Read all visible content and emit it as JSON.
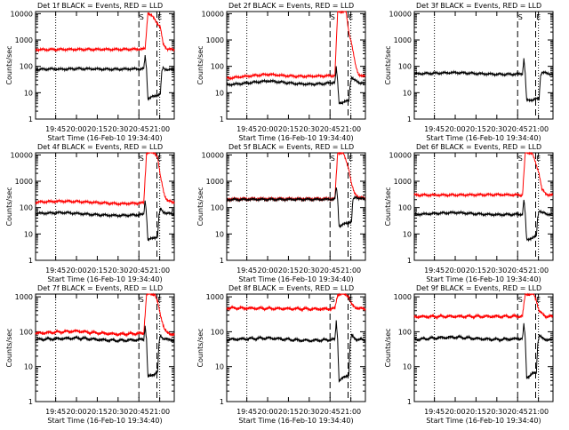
{
  "chart_data": [
    {
      "type": "line",
      "title": "Det 1f BLACK = Events, RED = LLD",
      "xlabel": "Start Time (16-Feb-10 19:34:40)",
      "ylabel": "Counts/sec",
      "y_scale": "log",
      "ylim": [
        1,
        12000
      ],
      "xlim": [
        0,
        100
      ],
      "grid": false,
      "x_tick_labels": [
        "19:45",
        "20:00",
        "20:15",
        "20:30",
        "20:45",
        "21:00"
      ],
      "y_tick_labels": [
        "1",
        "10",
        "100",
        "1000",
        "10000"
      ],
      "markers": [
        "S",
        "E"
      ],
      "series": [
        {
          "color": "#ff0000",
          "x": [
            0,
            20,
            40,
            60,
            75,
            79,
            81,
            84,
            86,
            90,
            92,
            95,
            100
          ],
          "values": [
            430,
            440,
            440,
            440,
            450,
            460,
            11000,
            8000,
            6000,
            3000,
            700,
            450,
            430
          ]
        },
        {
          "color": "#000000",
          "x": [
            0,
            10,
            20,
            30,
            40,
            50,
            60,
            70,
            78,
            79,
            80,
            81,
            90,
            91,
            92,
            93,
            95,
            100
          ],
          "values": [
            75,
            80,
            78,
            82,
            80,
            78,
            78,
            80,
            80,
            250,
            80,
            6,
            9,
            60,
            90,
            80,
            75,
            75
          ]
        }
      ]
    },
    {
      "type": "line",
      "title": "Det 2f BLACK = Events, RED = LLD",
      "xlabel": "Start Time (16-Feb-10 19:34:40)",
      "ylabel": "Counts/sec",
      "y_scale": "log",
      "ylim": [
        1,
        12000
      ],
      "xlim": [
        0,
        100
      ],
      "grid": false,
      "x_tick_labels": [
        "19:45",
        "20:00",
        "20:15",
        "20:30",
        "20:45",
        "21:00"
      ],
      "y_tick_labels": [
        "1",
        "10",
        "100",
        "1000",
        "10000"
      ],
      "markers": [
        "S",
        "E"
      ],
      "series": [
        {
          "color": "#ff0000",
          "x": [
            0,
            10,
            20,
            30,
            40,
            50,
            60,
            70,
            78,
            80,
            82,
            86,
            88,
            90,
            93,
            95,
            100
          ],
          "values": [
            35,
            40,
            45,
            50,
            45,
            42,
            42,
            43,
            45,
            12000,
            12000,
            12000,
            2000,
            800,
            100,
            50,
            40
          ]
        },
        {
          "color": "#000000",
          "x": [
            0,
            10,
            20,
            30,
            40,
            50,
            60,
            70,
            78,
            79,
            80,
            81,
            88,
            89,
            90,
            92,
            95,
            100
          ],
          "values": [
            20,
            22,
            25,
            28,
            25,
            22,
            21,
            22,
            25,
            90,
            25,
            4,
            5,
            20,
            40,
            30,
            25,
            22
          ]
        }
      ]
    },
    {
      "type": "line",
      "title": "Det 3f BLACK = Events, RED = LLD",
      "xlabel": "Start Time (16-Feb-10 19:34:40)",
      "ylabel": "Counts/sec",
      "y_scale": "log",
      "ylim": [
        1,
        12000
      ],
      "xlim": [
        0,
        100
      ],
      "grid": false,
      "x_tick_labels": [
        "19:45",
        "20:00",
        "20:15",
        "20:30",
        "20:45",
        "21:00"
      ],
      "y_tick_labels": [
        "1",
        "10",
        "100",
        "1000",
        "10000"
      ],
      "markers": [
        "S",
        "E"
      ],
      "series": [
        {
          "color": "#000000",
          "x": [
            0,
            10,
            20,
            30,
            40,
            50,
            60,
            70,
            78,
            79,
            80,
            81,
            90,
            91,
            92,
            95,
            100
          ],
          "values": [
            52,
            54,
            56,
            58,
            55,
            52,
            50,
            50,
            52,
            200,
            50,
            5,
            6,
            45,
            60,
            55,
            50
          ]
        }
      ]
    },
    {
      "type": "line",
      "title": "Det 4f BLACK = Events, RED = LLD",
      "xlabel": "Start Time (16-Feb-10 19:34:40)",
      "ylabel": "Counts/sec",
      "y_scale": "log",
      "ylim": [
        1,
        12000
      ],
      "xlim": [
        0,
        100
      ],
      "grid": false,
      "x_tick_labels": [
        "19:45",
        "20:00",
        "20:15",
        "20:30",
        "20:45",
        "21:00"
      ],
      "y_tick_labels": [
        "1",
        "10",
        "100",
        "1000",
        "10000"
      ],
      "markers": [
        "S",
        "E"
      ],
      "series": [
        {
          "color": "#ff0000",
          "x": [
            0,
            10,
            20,
            30,
            40,
            50,
            60,
            70,
            78,
            80,
            82,
            86,
            88,
            90,
            93,
            95,
            100
          ],
          "values": [
            160,
            170,
            175,
            170,
            160,
            150,
            140,
            145,
            150,
            12000,
            12000,
            12000,
            8000,
            1500,
            300,
            180,
            160
          ]
        },
        {
          "color": "#000000",
          "x": [
            0,
            10,
            20,
            30,
            40,
            50,
            60,
            70,
            78,
            79,
            80,
            81,
            88,
            89,
            90,
            92,
            95,
            100
          ],
          "values": [
            60,
            62,
            65,
            60,
            55,
            52,
            50,
            52,
            55,
            200,
            55,
            6,
            8,
            50,
            90,
            70,
            60,
            58
          ]
        }
      ]
    },
    {
      "type": "line",
      "title": "Det 5f BLACK = Events, RED = LLD",
      "xlabel": "Start Time (16-Feb-10 19:34:40)",
      "ylabel": "Counts/sec",
      "y_scale": "log",
      "ylim": [
        1,
        12000
      ],
      "xlim": [
        0,
        100
      ],
      "grid": false,
      "x_tick_labels": [
        "19:45",
        "20:00",
        "20:15",
        "20:30",
        "20:45",
        "21:00"
      ],
      "y_tick_labels": [
        "1",
        "10",
        "100",
        "1000",
        "10000"
      ],
      "markers": [
        "S",
        "E"
      ],
      "series": [
        {
          "color": "#ff0000",
          "x": [
            0,
            20,
            40,
            60,
            70,
            78,
            80,
            82,
            84,
            88,
            90,
            92,
            95,
            100
          ],
          "values": [
            210,
            215,
            215,
            215,
            215,
            220,
            12000,
            12000,
            12000,
            3000,
            800,
            350,
            250,
            220
          ]
        },
        {
          "color": "#000000",
          "x": [
            0,
            20,
            40,
            60,
            70,
            78,
            79,
            80,
            81,
            90,
            91,
            93,
            95,
            100
          ],
          "values": [
            200,
            205,
            205,
            205,
            205,
            210,
            600,
            210,
            20,
            30,
            200,
            250,
            230,
            210
          ]
        }
      ]
    },
    {
      "type": "line",
      "title": "Det 6f BLACK = Events, RED = LLD",
      "xlabel": "Start Time (16-Feb-10 19:34:40)",
      "ylabel": "Counts/sec",
      "y_scale": "log",
      "ylim": [
        1,
        12000
      ],
      "xlim": [
        0,
        100
      ],
      "grid": false,
      "x_tick_labels": [
        "19:45",
        "20:00",
        "20:15",
        "20:30",
        "20:45",
        "21:00"
      ],
      "y_tick_labels": [
        "1",
        "10",
        "100",
        "1000",
        "10000"
      ],
      "markers": [
        "S",
        "E"
      ],
      "series": [
        {
          "color": "#ff0000",
          "x": [
            0,
            20,
            40,
            60,
            70,
            78,
            80,
            82,
            85,
            88,
            90,
            92,
            95,
            100
          ],
          "values": [
            300,
            300,
            305,
            310,
            305,
            300,
            12000,
            12000,
            12000,
            4000,
            2000,
            500,
            320,
            300
          ]
        },
        {
          "color": "#000000",
          "x": [
            0,
            10,
            20,
            30,
            40,
            50,
            60,
            70,
            78,
            79,
            80,
            81,
            88,
            89,
            90,
            92,
            95,
            100
          ],
          "values": [
            55,
            58,
            62,
            65,
            60,
            56,
            54,
            55,
            56,
            200,
            56,
            6,
            8,
            45,
            80,
            65,
            58,
            55
          ]
        }
      ]
    },
    {
      "type": "line",
      "title": "Det 7f BLACK = Events, RED = LLD",
      "xlabel": "Start Time (16-Feb-10 19:34:40)",
      "ylabel": "Counts/sec",
      "y_scale": "log",
      "ylim": [
        1,
        1200
      ],
      "xlim": [
        0,
        100
      ],
      "grid": false,
      "x_tick_labels": [
        "19:45",
        "20:00",
        "20:15",
        "20:30",
        "20:45",
        "21:00"
      ],
      "y_tick_labels": [
        "1",
        "10",
        "100",
        "1000"
      ],
      "markers": [
        "S",
        "E"
      ],
      "series": [
        {
          "color": "#ff0000",
          "x": [
            0,
            10,
            20,
            30,
            40,
            50,
            60,
            70,
            78,
            80,
            82,
            86,
            88,
            90,
            93,
            95,
            100
          ],
          "values": [
            90,
            95,
            100,
            105,
            95,
            90,
            85,
            88,
            90,
            1200,
            1200,
            1200,
            700,
            300,
            120,
            90,
            85
          ]
        },
        {
          "color": "#000000",
          "x": [
            0,
            10,
            20,
            30,
            40,
            50,
            60,
            70,
            78,
            79,
            80,
            81,
            88,
            89,
            90,
            92,
            95,
            100
          ],
          "values": [
            60,
            62,
            64,
            66,
            62,
            58,
            56,
            58,
            60,
            150,
            60,
            5,
            7,
            45,
            80,
            65,
            60,
            58
          ]
        }
      ]
    },
    {
      "type": "line",
      "title": "Det 8f BLACK = Events, RED = LLD",
      "xlabel": "Start Time (16-Feb-10 19:34:40)",
      "ylabel": "Counts/sec",
      "y_scale": "log",
      "ylim": [
        1,
        1200
      ],
      "xlim": [
        0,
        100
      ],
      "grid": false,
      "x_tick_labels": [
        "19:45",
        "20:00",
        "20:15",
        "20:30",
        "20:45",
        "21:00"
      ],
      "y_tick_labels": [
        "1",
        "10",
        "100",
        "1000"
      ],
      "markers": [
        "S",
        "E"
      ],
      "series": [
        {
          "color": "#ff0000",
          "x": [
            0,
            20,
            40,
            60,
            70,
            78,
            80,
            82,
            86,
            88,
            90,
            93,
            95,
            100
          ],
          "values": [
            480,
            470,
            460,
            450,
            450,
            460,
            1200,
            1200,
            1200,
            1000,
            600,
            500,
            470,
            450
          ]
        },
        {
          "color": "#000000",
          "x": [
            0,
            10,
            20,
            30,
            40,
            50,
            60,
            70,
            78,
            79,
            80,
            81,
            88,
            89,
            90,
            92,
            95,
            100
          ],
          "values": [
            60,
            62,
            64,
            66,
            62,
            58,
            56,
            58,
            60,
            200,
            60,
            4,
            6,
            45,
            80,
            65,
            60,
            58
          ]
        }
      ]
    },
    {
      "type": "line",
      "title": "Det 9f BLACK = Events, RED = LLD",
      "xlabel": "Start Time (16-Feb-10 19:34:40)",
      "ylabel": "Counts/sec",
      "y_scale": "log",
      "ylim": [
        1,
        1200
      ],
      "xlim": [
        0,
        100
      ],
      "grid": false,
      "x_tick_labels": [
        "19:45",
        "20:00",
        "20:15",
        "20:30",
        "20:45",
        "21:00"
      ],
      "y_tick_labels": [
        "1",
        "10",
        "100",
        "1000"
      ],
      "markers": [
        "S",
        "E"
      ],
      "series": [
        {
          "color": "#ff0000",
          "x": [
            0,
            20,
            40,
            60,
            70,
            78,
            80,
            82,
            86,
            88,
            90,
            93,
            95,
            100
          ],
          "values": [
            270,
            275,
            275,
            275,
            275,
            280,
            1200,
            1200,
            1200,
            800,
            400,
            300,
            280,
            270
          ]
        },
        {
          "color": "#000000",
          "x": [
            0,
            10,
            20,
            30,
            40,
            50,
            60,
            70,
            78,
            79,
            80,
            81,
            88,
            89,
            90,
            92,
            95,
            100
          ],
          "values": [
            60,
            64,
            68,
            70,
            66,
            62,
            60,
            62,
            64,
            160,
            64,
            5,
            7,
            45,
            80,
            65,
            60,
            58
          ]
        }
      ]
    }
  ]
}
